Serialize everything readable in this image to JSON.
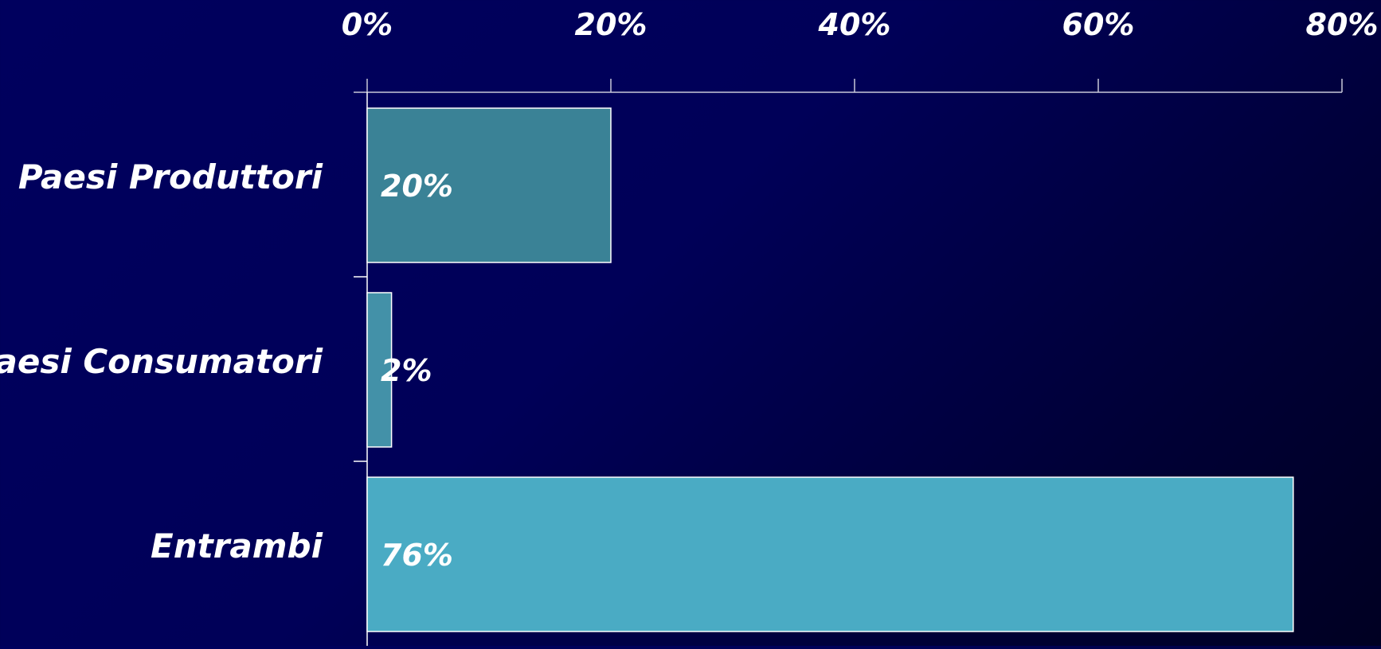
{
  "chart_data": {
    "type": "bar",
    "orientation": "horizontal",
    "categories": [
      "Paesi Produttori",
      "Paesi Consumatori",
      "Entrambi"
    ],
    "values": [
      20,
      2,
      76
    ],
    "data_labels": [
      "20%",
      "2%",
      "76%"
    ],
    "bar_colors": [
      "#3a8296",
      "#4391a8",
      "#4aabc4"
    ],
    "xlim": [
      0,
      80
    ],
    "x_ticks": [
      0,
      20,
      40,
      60,
      80
    ],
    "x_tick_labels": [
      "0%",
      "20%",
      "40%",
      "60%",
      "80%"
    ],
    "x_axis_position": "top",
    "title": "",
    "xlabel": "",
    "ylabel": "",
    "grid": false,
    "legend": "none"
  },
  "colors": {
    "background": "#00005a",
    "axis": "#c8c8d8",
    "bar_outline": "#ffffff",
    "text": "#ffffff"
  }
}
